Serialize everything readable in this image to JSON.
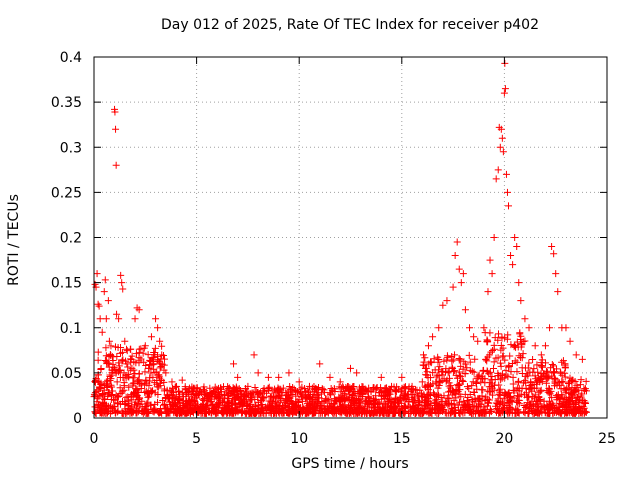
{
  "chart_data": {
    "type": "scatter",
    "title": "Day 012 of 2025, Rate Of TEC Index for receiver p402",
    "xlabel": "GPS time / hours",
    "ylabel": "ROTI / TECUs",
    "xlim": [
      0,
      25
    ],
    "ylim": [
      0,
      0.4
    ],
    "xticks": [
      0,
      5,
      10,
      15,
      20,
      25
    ],
    "yticks": [
      0,
      0.05,
      0.1,
      0.15,
      0.2,
      0.25,
      0.3,
      0.35,
      0.4
    ],
    "ytick_labels": [
      "0",
      "0.05",
      "0.1",
      "0.15",
      "0.2",
      "0.25",
      "0.3",
      "0.35",
      "0.4"
    ],
    "xtick_labels": [
      "0",
      "5",
      "10",
      "15",
      "20",
      "25"
    ],
    "grid": true,
    "marker": "+",
    "color": "#ff0000",
    "series": [
      {
        "values_note": "",
        "points": [
          [
            0.05,
            0.148
          ],
          [
            0.1,
            0.145
          ],
          [
            0.15,
            0.16
          ],
          [
            0.2,
            0.126
          ],
          [
            0.25,
            0.124
          ],
          [
            0.3,
            0.11
          ],
          [
            0.4,
            0.095
          ],
          [
            0.5,
            0.14
          ],
          [
            0.55,
            0.153
          ],
          [
            0.6,
            0.11
          ],
          [
            0.7,
            0.13
          ],
          [
            0.75,
            0.085
          ],
          [
            0.8,
            0.07
          ],
          [
            1.0,
            0.342
          ],
          [
            1.02,
            0.339
          ],
          [
            1.05,
            0.32
          ],
          [
            1.08,
            0.28
          ],
          [
            1.1,
            0.115
          ],
          [
            1.2,
            0.11
          ],
          [
            1.3,
            0.158
          ],
          [
            1.35,
            0.15
          ],
          [
            1.4,
            0.143
          ],
          [
            1.5,
            0.085
          ],
          [
            1.6,
            0.06
          ],
          [
            2.0,
            0.11
          ],
          [
            2.1,
            0.122
          ],
          [
            2.2,
            0.12
          ],
          [
            2.5,
            0.08
          ],
          [
            2.8,
            0.09
          ],
          [
            3.0,
            0.11
          ],
          [
            3.1,
            0.1
          ],
          [
            3.2,
            0.085
          ],
          [
            3.3,
            0.07
          ],
          [
            3.5,
            0.05
          ],
          [
            3.8,
            0.04
          ],
          [
            4.0,
            0.035
          ],
          [
            4.3,
            0.042
          ],
          [
            4.6,
            0.03
          ],
          [
            5.0,
            0.03
          ],
          [
            5.5,
            0.025
          ],
          [
            6.0,
            0.028
          ],
          [
            6.5,
            0.025
          ],
          [
            6.8,
            0.06
          ],
          [
            7.0,
            0.045
          ],
          [
            7.5,
            0.035
          ],
          [
            7.8,
            0.07
          ],
          [
            8.0,
            0.05
          ],
          [
            8.5,
            0.045
          ],
          [
            9.0,
            0.045
          ],
          [
            9.5,
            0.05
          ],
          [
            10.0,
            0.04
          ],
          [
            10.5,
            0.035
          ],
          [
            11.0,
            0.06
          ],
          [
            11.5,
            0.045
          ],
          [
            12.0,
            0.04
          ],
          [
            12.5,
            0.055
          ],
          [
            12.8,
            0.05
          ],
          [
            13.0,
            0.03
          ],
          [
            13.5,
            0.03
          ],
          [
            14.0,
            0.045
          ],
          [
            14.5,
            0.035
          ],
          [
            15.0,
            0.045
          ],
          [
            15.5,
            0.035
          ],
          [
            16.0,
            0.04
          ],
          [
            16.3,
            0.08
          ],
          [
            16.5,
            0.09
          ],
          [
            16.8,
            0.1
          ],
          [
            17.0,
            0.125
          ],
          [
            17.2,
            0.13
          ],
          [
            17.5,
            0.145
          ],
          [
            17.6,
            0.18
          ],
          [
            17.7,
            0.195
          ],
          [
            17.8,
            0.165
          ],
          [
            17.9,
            0.15
          ],
          [
            18.0,
            0.16
          ],
          [
            18.1,
            0.12
          ],
          [
            18.3,
            0.1
          ],
          [
            18.5,
            0.09
          ],
          [
            18.7,
            0.085
          ],
          [
            19.0,
            0.1
          ],
          [
            19.2,
            0.14
          ],
          [
            19.3,
            0.175
          ],
          [
            19.4,
            0.16
          ],
          [
            19.5,
            0.2
          ],
          [
            19.6,
            0.265
          ],
          [
            19.7,
            0.275
          ],
          [
            19.75,
            0.322
          ],
          [
            19.8,
            0.3
          ],
          [
            19.85,
            0.32
          ],
          [
            19.9,
            0.31
          ],
          [
            19.95,
            0.295
          ],
          [
            20.0,
            0.36
          ],
          [
            20.02,
            0.393
          ],
          [
            20.05,
            0.365
          ],
          [
            20.1,
            0.27
          ],
          [
            20.15,
            0.25
          ],
          [
            20.2,
            0.235
          ],
          [
            20.3,
            0.18
          ],
          [
            20.4,
            0.17
          ],
          [
            20.5,
            0.2
          ],
          [
            20.6,
            0.19
          ],
          [
            20.7,
            0.15
          ],
          [
            20.8,
            0.13
          ],
          [
            21.0,
            0.11
          ],
          [
            21.2,
            0.1
          ],
          [
            21.5,
            0.08
          ],
          [
            21.8,
            0.07
          ],
          [
            22.0,
            0.08
          ],
          [
            22.2,
            0.1
          ],
          [
            22.3,
            0.19
          ],
          [
            22.4,
            0.182
          ],
          [
            22.5,
            0.16
          ],
          [
            22.6,
            0.14
          ],
          [
            22.8,
            0.1
          ],
          [
            23.0,
            0.1
          ],
          [
            23.2,
            0.085
          ],
          [
            23.5,
            0.07
          ],
          [
            23.8,
            0.065
          ],
          [
            24.0,
            0.03
          ]
        ]
      }
    ]
  }
}
